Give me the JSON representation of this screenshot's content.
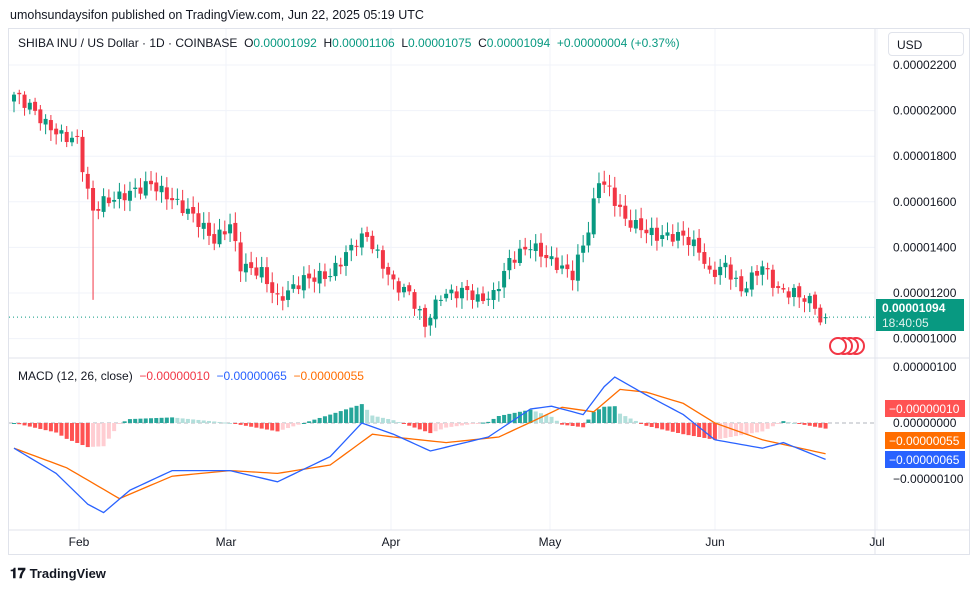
{
  "header": {
    "published": "umohsundaysifon published on TradingView.com, Jun 22, 2025 05:19 UTC"
  },
  "legend": {
    "symbol": "SHIBA INU / US Dollar · 1D · COINBASE",
    "o_label": "O",
    "o": "0.00001092",
    "h_label": "H",
    "h": "0.00001106",
    "l_label": "L",
    "l": "0.00001075",
    "c_label": "C",
    "c": "0.00001094",
    "change": "+0.00000004 (+0.37%)"
  },
  "currency_button": "USD",
  "price_axis": [
    "0.00002200",
    "0.00002000",
    "0.00001800",
    "0.00001600",
    "0.00001400",
    "0.00001200",
    "0.00001000"
  ],
  "last_price": {
    "value": "0.00001094",
    "countdown": "18:40:05"
  },
  "macd_legend": {
    "title": "MACD (12, 26, close)",
    "hist": "−0.00000010",
    "macd": "−0.00000065",
    "signal": "−0.00000055"
  },
  "macd_axis": [
    "0.00000100",
    "0.00000000",
    "−0.00000100"
  ],
  "macd_labels": {
    "hist": "−0.00000010",
    "signal": "−0.00000055",
    "macd": "−0.00000065"
  },
  "time_axis": [
    "Feb",
    "Mar",
    "Apr",
    "May",
    "Jun",
    "Jul"
  ],
  "footer": {
    "brand": "TradingView"
  },
  "colors": {
    "up": "#089981",
    "down": "#f23645",
    "macd": "#2962ff",
    "signal": "#ff6d00"
  },
  "chart_data": {
    "type": "candlestick",
    "title": "SHIBA INU / US Dollar · 1D · COINBASE",
    "units": "price in 1e-6 USD, day index 0 = Jan 19 2025, 154 = Jun 22 2025",
    "ylim": [
      9.7,
      22.6
    ],
    "close_keypoints": [
      [
        0,
        20.7
      ],
      [
        3,
        20.2
      ],
      [
        6,
        19.4
      ],
      [
        9,
        18.9
      ],
      [
        12,
        18.7
      ],
      [
        14,
        16.4
      ],
      [
        15,
        15.6
      ],
      [
        17,
        16.0
      ],
      [
        21,
        16.3
      ],
      [
        26,
        16.8
      ],
      [
        30,
        16.1
      ],
      [
        34,
        15.4
      ],
      [
        38,
        14.3
      ],
      [
        41,
        15.0
      ],
      [
        43,
        13.2
      ],
      [
        47,
        12.9
      ],
      [
        50,
        11.7
      ],
      [
        55,
        12.6
      ],
      [
        60,
        12.8
      ],
      [
        65,
        14.3
      ],
      [
        67,
        14.5
      ],
      [
        72,
        12.4
      ],
      [
        75,
        12.0
      ],
      [
        78,
        10.6
      ],
      [
        81,
        11.9
      ],
      [
        86,
        12.1
      ],
      [
        88,
        11.7
      ],
      [
        91,
        11.9
      ],
      [
        94,
        13.4
      ],
      [
        98,
        14.1
      ],
      [
        102,
        13.4
      ],
      [
        106,
        12.8
      ],
      [
        109,
        14.8
      ],
      [
        111,
        17.0
      ],
      [
        113,
        16.5
      ],
      [
        116,
        15.2
      ],
      [
        122,
        14.5
      ],
      [
        127,
        14.5
      ],
      [
        130,
        13.9
      ],
      [
        132,
        12.8
      ],
      [
        135,
        13.2
      ],
      [
        138,
        12.1
      ],
      [
        142,
        13.2
      ],
      [
        145,
        12.1
      ],
      [
        148,
        12.0
      ],
      [
        152,
        11.5
      ],
      [
        153,
        10.7
      ],
      [
        154,
        10.94
      ]
    ],
    "macd_keypoints": [
      [
        0,
        -0.45
      ],
      [
        8,
        -0.9
      ],
      [
        14,
        -1.45
      ],
      [
        17,
        -1.6
      ],
      [
        22,
        -1.2
      ],
      [
        30,
        -0.85
      ],
      [
        41,
        -0.85
      ],
      [
        50,
        -1.05
      ],
      [
        60,
        -0.6
      ],
      [
        66,
        0.0
      ],
      [
        72,
        -0.2
      ],
      [
        79,
        -0.5
      ],
      [
        90,
        -0.25
      ],
      [
        98,
        0.25
      ],
      [
        102,
        0.3
      ],
      [
        108,
        0.15
      ],
      [
        112,
        0.65
      ],
      [
        114,
        0.82
      ],
      [
        120,
        0.5
      ],
      [
        127,
        0.15
      ],
      [
        133,
        -0.3
      ],
      [
        142,
        -0.45
      ],
      [
        146,
        -0.35
      ],
      [
        154,
        -0.65
      ]
    ],
    "signal_keypoints": [
      [
        0,
        -0.45
      ],
      [
        10,
        -0.8
      ],
      [
        20,
        -1.35
      ],
      [
        30,
        -0.95
      ],
      [
        41,
        -0.85
      ],
      [
        50,
        -0.9
      ],
      [
        60,
        -0.75
      ],
      [
        68,
        -0.2
      ],
      [
        72,
        -0.25
      ],
      [
        82,
        -0.35
      ],
      [
        92,
        -0.25
      ],
      [
        100,
        0.1
      ],
      [
        104,
        0.28
      ],
      [
        110,
        0.2
      ],
      [
        115,
        0.6
      ],
      [
        120,
        0.55
      ],
      [
        127,
        0.35
      ],
      [
        133,
        0.0
      ],
      [
        142,
        -0.3
      ],
      [
        154,
        -0.55
      ]
    ]
  }
}
